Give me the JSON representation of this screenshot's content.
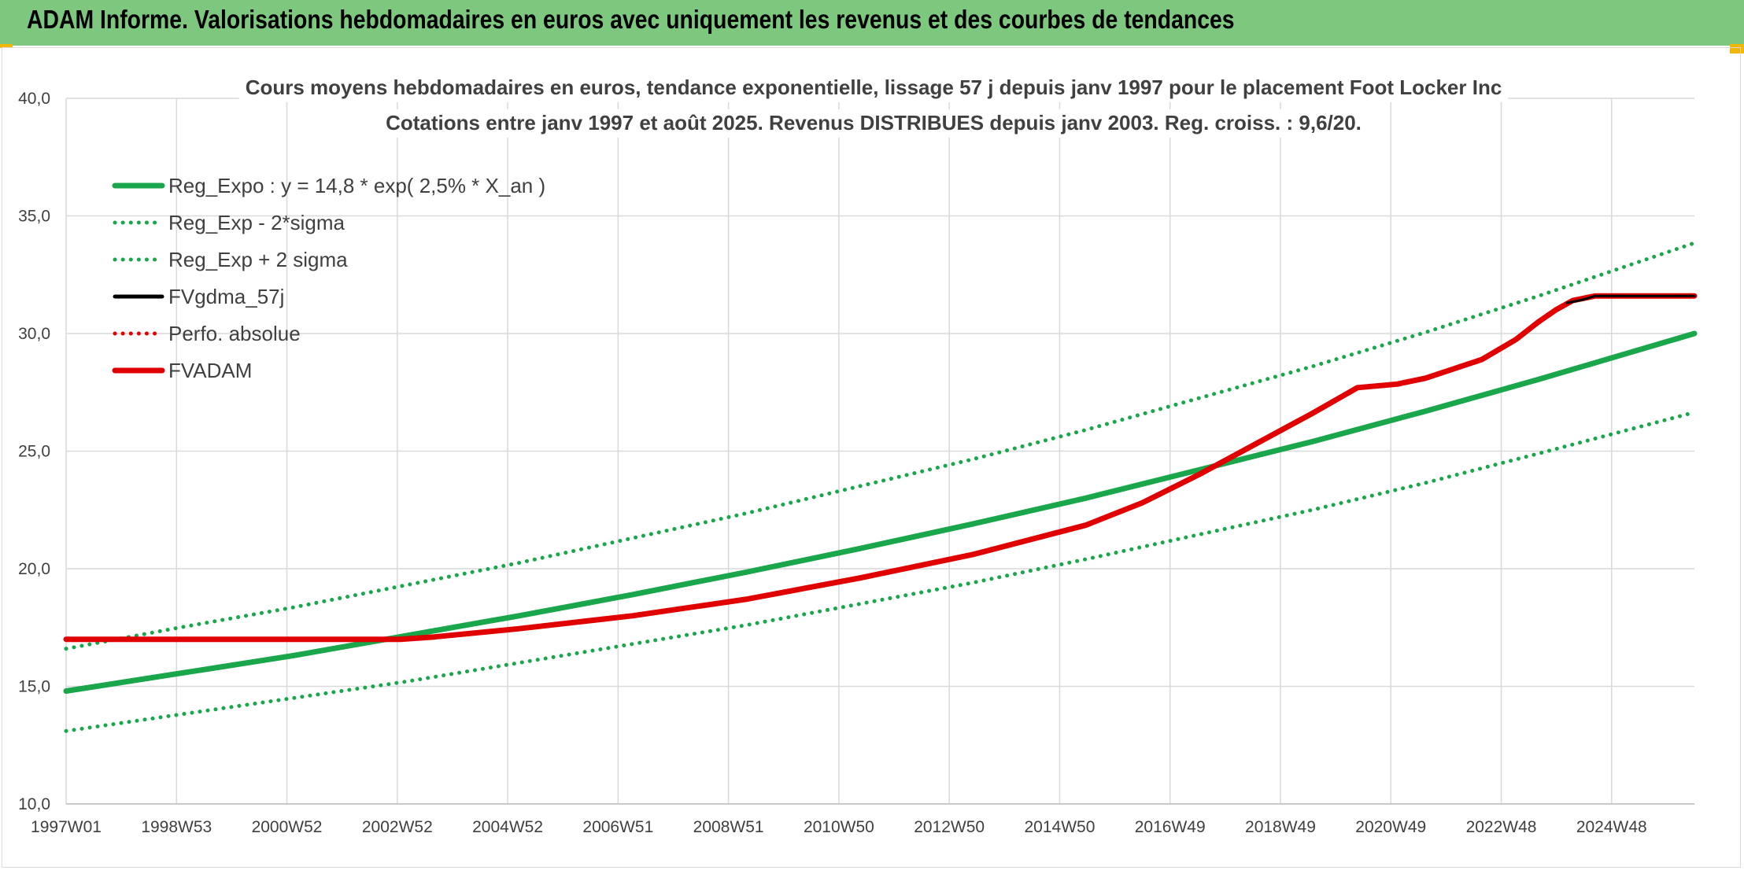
{
  "header": {
    "title": "ADAM Informe. Valorisations hebdomadaires en euros avec uniquement les revenus et des courbes de tendances",
    "bg_color": "#7dc77f",
    "accent_color": "#f2b705"
  },
  "chart_data": {
    "type": "line",
    "title": "Cours moyens hebdomadaires en euros, tendance exponentielle, lissage 57 j depuis janv 1997 pour le placement Foot Locker Inc",
    "subtitle": "Cotations entre janv 1997 et août 2025. Revenus DISTRIBUES depuis janv 2003. Reg. croiss. : 9,6/20.",
    "xlabel": "",
    "ylabel": "",
    "ylim": [
      10,
      40
    ],
    "yticks": [
      "10,0",
      "15,0",
      "20,0",
      "25,0",
      "30,0",
      "35,0",
      "40,0"
    ],
    "xticks": [
      "1997W01",
      "1998W53",
      "2000W52",
      "2002W52",
      "2004W52",
      "2006W51",
      "2008W51",
      "2010W50",
      "2012W50",
      "2014W50",
      "2016W49",
      "2018W49",
      "2020W49",
      "2022W48",
      "2024W48"
    ],
    "xrange_years": [
      1997.0,
      2025.75
    ],
    "grid": true,
    "legend_position": "top-left",
    "series": [
      {
        "name": "Reg_Expo : y = 14,8 * exp( 2,5% *  X_an )",
        "style": "solid",
        "color": "#1aa64a",
        "x": [
          1997,
          1999,
          2001,
          2003,
          2005,
          2007,
          2009,
          2011,
          2013,
          2015,
          2017,
          2019,
          2021,
          2023,
          2025.75
        ],
        "values": [
          14.8,
          15.55,
          16.3,
          17.15,
          18.0,
          18.9,
          19.85,
          20.85,
          21.9,
          23.0,
          24.2,
          25.4,
          26.7,
          28.05,
          30.0
        ]
      },
      {
        "name": "Reg_Exp - 2*sigma",
        "style": "dotted",
        "color": "#1aa64a",
        "x": [
          1997,
          1999,
          2001,
          2003,
          2005,
          2007,
          2009,
          2011,
          2013,
          2015,
          2017,
          2019,
          2021,
          2023,
          2025.75
        ],
        "values": [
          13.1,
          13.8,
          14.5,
          15.2,
          16.0,
          16.8,
          17.6,
          18.5,
          19.4,
          20.4,
          21.45,
          22.5,
          23.65,
          24.9,
          26.65
        ]
      },
      {
        "name": "Reg_Exp + 2 sigma",
        "style": "dotted",
        "color": "#1aa64a",
        "x": [
          1997,
          1999,
          2001,
          2003,
          2005,
          2007,
          2009,
          2011,
          2013,
          2015,
          2017,
          2019,
          2021,
          2023,
          2025.75
        ],
        "values": [
          16.6,
          17.5,
          18.35,
          19.3,
          20.25,
          21.3,
          22.35,
          23.5,
          24.65,
          25.9,
          27.25,
          28.6,
          30.05,
          31.6,
          33.85
        ]
      },
      {
        "name": "FVgdma_57j",
        "style": "solid",
        "color": "#000000",
        "x": [
          2023.5,
          2023.8,
          2024.0,
          2025.75
        ],
        "values": [
          31.3,
          31.45,
          31.6,
          31.6
        ]
      },
      {
        "name": "Perfo. absolue",
        "style": "dotted",
        "color": "#e00000",
        "x": [],
        "values": []
      },
      {
        "name": "FVADAM",
        "style": "solid",
        "color": "#e00000",
        "x": [
          1997,
          1999,
          2001,
          2002.9,
          2003.5,
          2005,
          2007,
          2009,
          2011,
          2013,
          2015,
          2016,
          2017,
          2018,
          2019,
          2019.8,
          2020.5,
          2021,
          2022,
          2022.6,
          2023,
          2023.3,
          2023.6,
          2024,
          2025.75
        ],
        "values": [
          17.0,
          17.0,
          17.0,
          17.0,
          17.1,
          17.45,
          18.0,
          18.7,
          19.6,
          20.6,
          21.85,
          22.8,
          24.0,
          25.3,
          26.6,
          27.7,
          27.85,
          28.1,
          28.9,
          29.75,
          30.5,
          31.0,
          31.4,
          31.6,
          31.6
        ]
      }
    ]
  }
}
